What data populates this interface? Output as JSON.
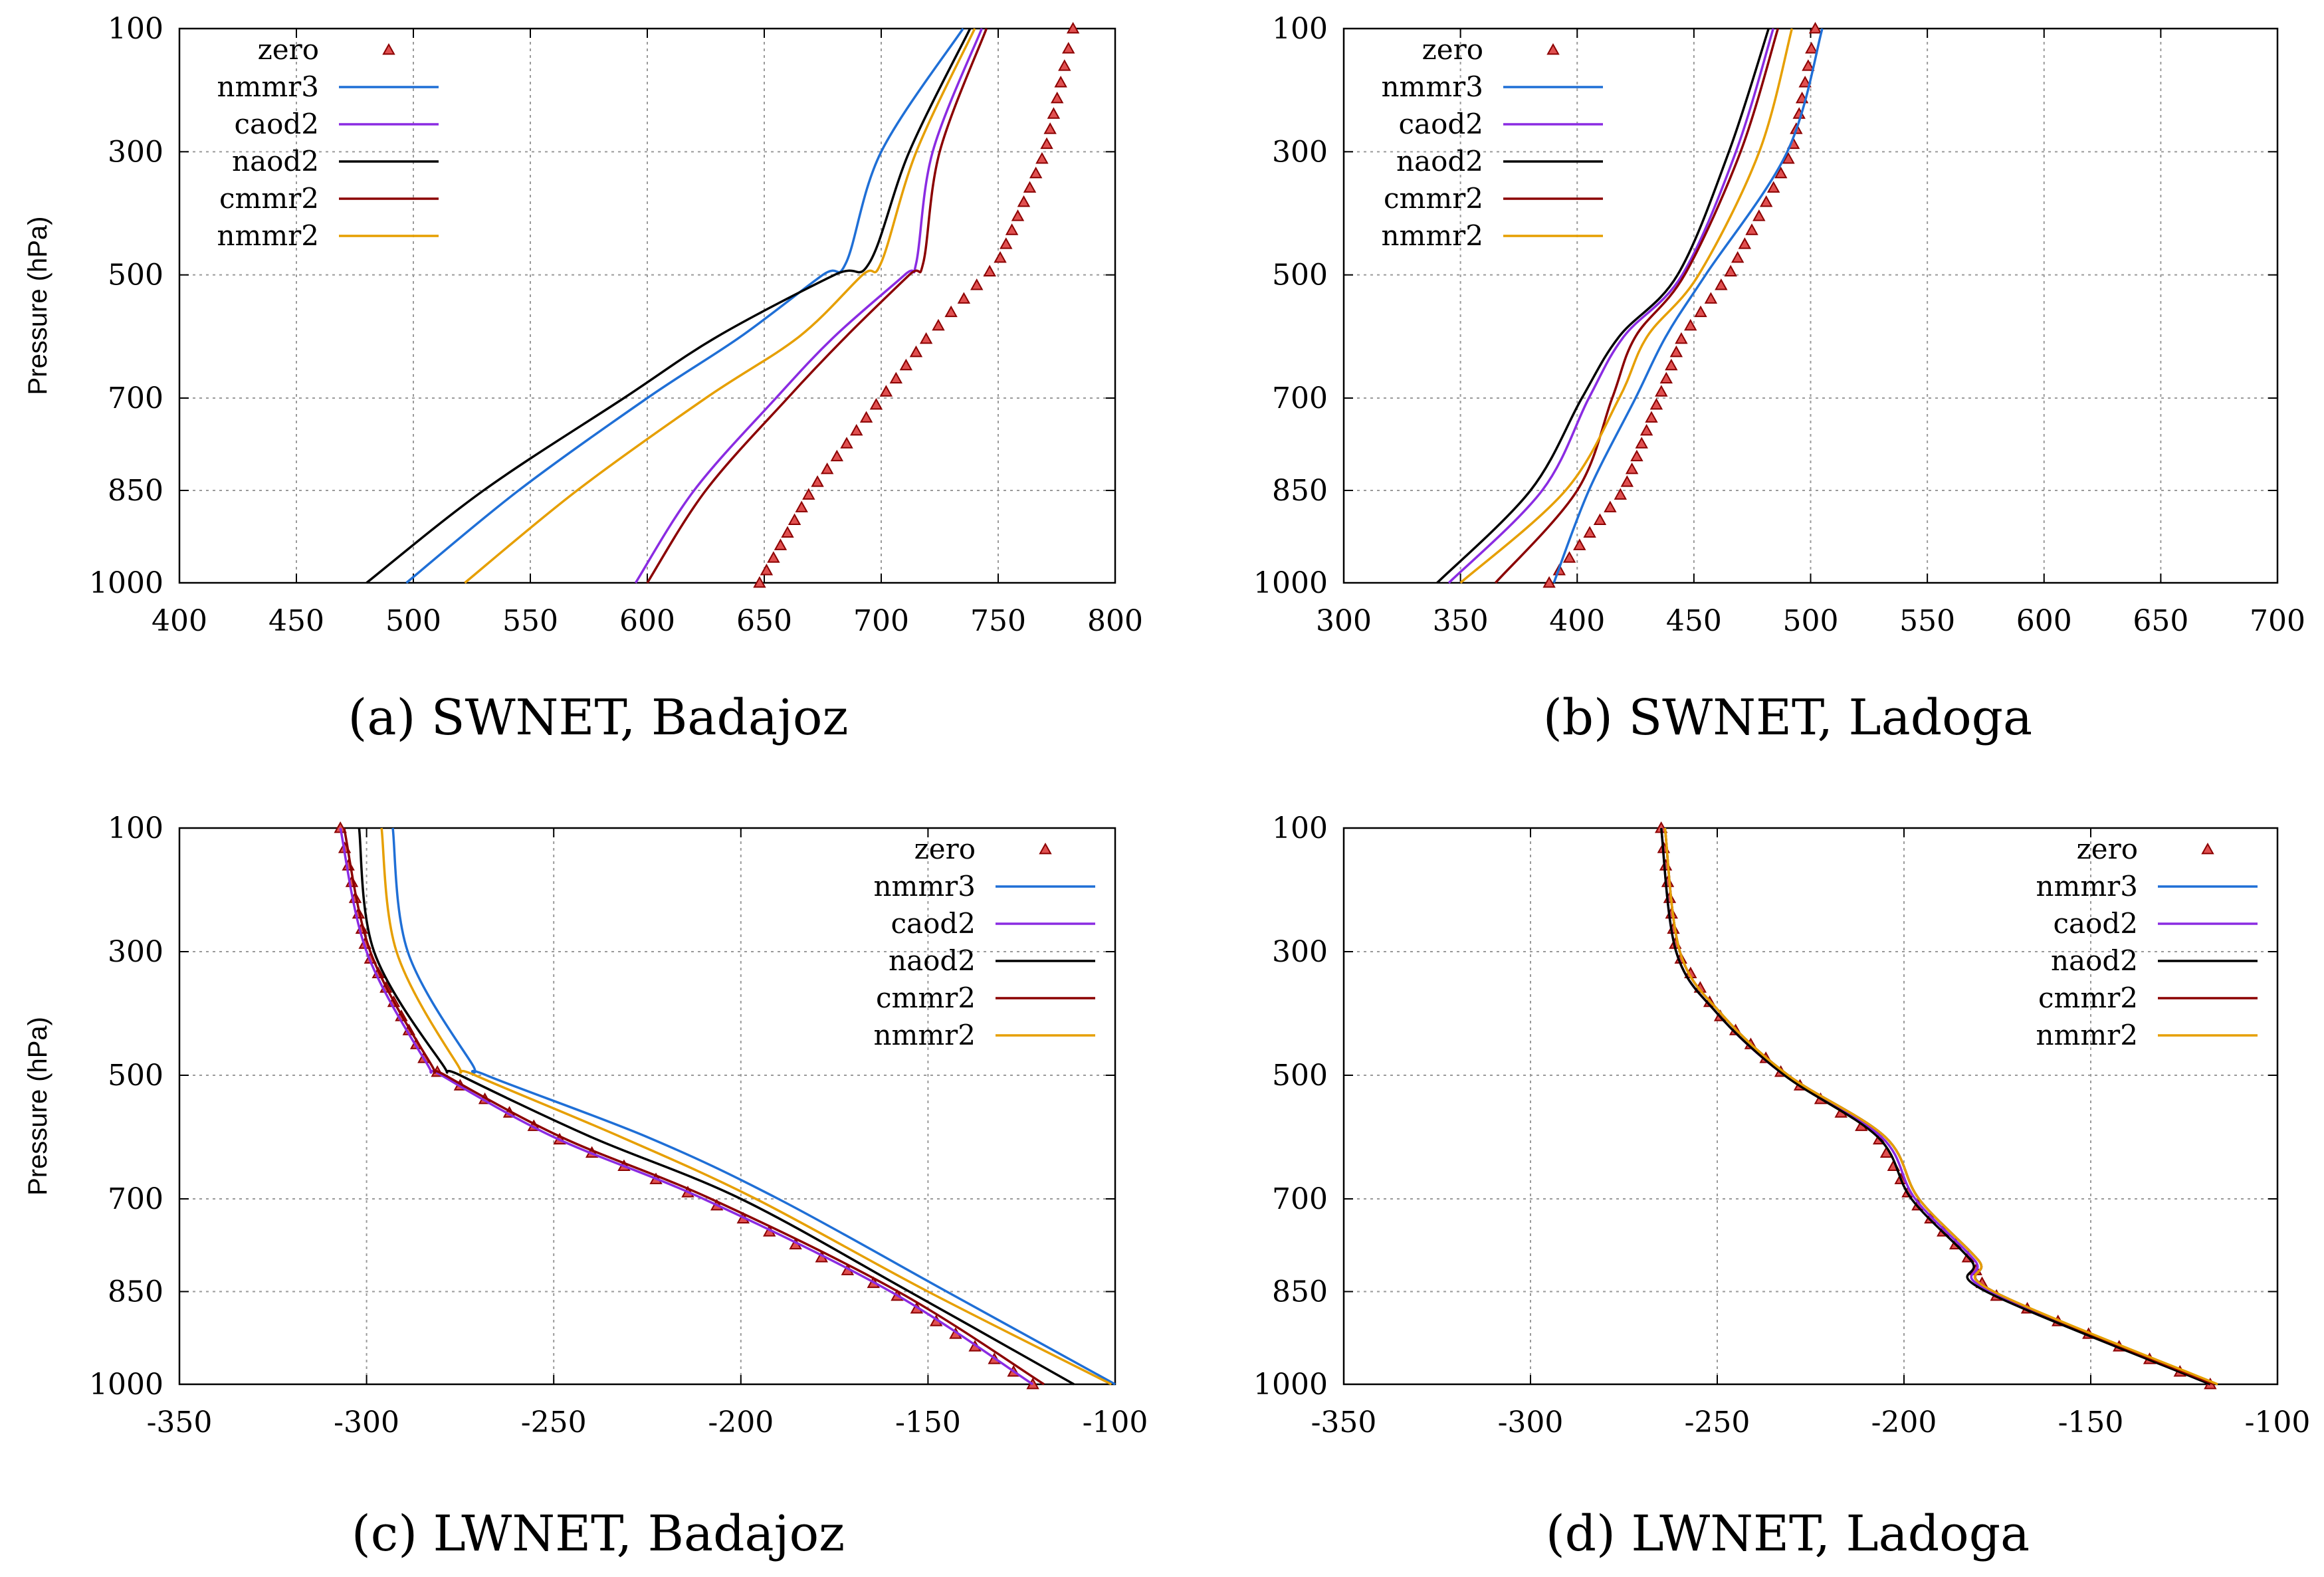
{
  "y_ticks": [
    "100",
    "300",
    "500",
    "700",
    "850",
    "1000"
  ],
  "y_tick_values": [
    100,
    300,
    500,
    700,
    850,
    1000
  ],
  "ylabel": "Pressure (hPa)",
  "series_meta": [
    {
      "key": "zero",
      "name": "zero",
      "color": "#8b0000",
      "fill": "#e05050",
      "marker": "triangle"
    },
    {
      "key": "nmmr3",
      "name": "nmmr3",
      "color": "#1f6fd6"
    },
    {
      "key": "caod2",
      "name": "caod2",
      "color": "#8a2be2"
    },
    {
      "key": "naod2",
      "name": "naod2",
      "color": "#000000"
    },
    {
      "key": "cmmr2",
      "name": "cmmr2",
      "color": "#8b0000"
    },
    {
      "key": "nmmr2",
      "name": "nmmr2",
      "color": "#e69f00"
    }
  ],
  "chart_data": [
    {
      "type": "line",
      "caption": "(a) SWNET, Badajoz",
      "xlim": [
        400,
        800
      ],
      "x_ticks": [
        "400",
        "450",
        "500",
        "550",
        "600",
        "650",
        "700",
        "750",
        "800"
      ],
      "legend_position": "top-left",
      "pressure": [
        100,
        300,
        480,
        500,
        600,
        700,
        850,
        1000
      ],
      "series": [
        {
          "name": "zero",
          "values": [
            782,
            770,
            750,
            745,
            720,
            700,
            670,
            648
          ]
        },
        {
          "name": "nmmr3",
          "values": [
            735,
            700,
            685,
            675,
            640,
            600,
            545,
            497
          ]
        },
        {
          "name": "caod2",
          "values": [
            743,
            722,
            715,
            710,
            680,
            655,
            620,
            595
          ]
        },
        {
          "name": "naod2",
          "values": [
            738,
            712,
            695,
            680,
            630,
            590,
            530,
            480
          ]
        },
        {
          "name": "cmmr2",
          "values": [
            745,
            725,
            718,
            712,
            685,
            660,
            625,
            600
          ]
        },
        {
          "name": "nmmr2",
          "values": [
            740,
            715,
            700,
            692,
            665,
            625,
            570,
            522
          ]
        }
      ]
    },
    {
      "type": "line",
      "caption": "(b) SWNET, Ladoga",
      "xlim": [
        300,
        700
      ],
      "x_ticks": [
        "300",
        "350",
        "400",
        "450",
        "500",
        "550",
        "600",
        "650",
        "700"
      ],
      "legend_position": "top-left",
      "pressure": [
        100,
        300,
        500,
        600,
        700,
        850,
        1000
      ],
      "series": [
        {
          "name": "zero",
          "values": [
            502,
            492,
            465,
            445,
            435,
            420,
            388
          ]
        },
        {
          "name": "nmmr3",
          "values": [
            505,
            490,
            455,
            438,
            425,
            405,
            390
          ]
        },
        {
          "name": "caod2",
          "values": [
            484,
            468,
            445,
            420,
            405,
            385,
            345
          ]
        },
        {
          "name": "naod2",
          "values": [
            482,
            465,
            443,
            418,
            402,
            380,
            340
          ]
        },
        {
          "name": "cmmr2",
          "values": [
            486,
            470,
            446,
            425,
            415,
            400,
            365
          ]
        },
        {
          "name": "nmmr2",
          "values": [
            492,
            478,
            452,
            430,
            418,
            395,
            350
          ]
        }
      ]
    },
    {
      "type": "line",
      "caption": "(c) LWNET, Badajoz",
      "xlim": [
        -350,
        -100
      ],
      "x_ticks": [
        "-350",
        "-300",
        "-250",
        "-200",
        "-150",
        "-100"
      ],
      "legend_position": "top-right",
      "pressure": [
        100,
        300,
        480,
        500,
        600,
        700,
        850,
        1000
      ],
      "series": [
        {
          "name": "zero",
          "values": [
            -307,
            -300,
            -284,
            -280,
            -250,
            -210,
            -160,
            -122
          ]
        },
        {
          "name": "nmmr3",
          "values": [
            -293,
            -289,
            -272,
            -268,
            -225,
            -190,
            -145,
            -100
          ]
        },
        {
          "name": "caod2",
          "values": [
            -307,
            -300,
            -284,
            -280,
            -250,
            -210,
            -160,
            -122
          ]
        },
        {
          "name": "naod2",
          "values": [
            -302,
            -298,
            -280,
            -275,
            -240,
            -200,
            -155,
            -111
          ]
        },
        {
          "name": "cmmr2",
          "values": [
            -306,
            -299,
            -283,
            -279,
            -248,
            -208,
            -158,
            -119
          ]
        },
        {
          "name": "nmmr2",
          "values": [
            -296,
            -292,
            -276,
            -271,
            -232,
            -196,
            -150,
            -101
          ]
        }
      ]
    },
    {
      "type": "line",
      "caption": "(d) LWNET, Ladoga",
      "xlim": [
        -350,
        -100
      ],
      "x_ticks": [
        "-350",
        "-300",
        "-250",
        "-200",
        "-150",
        "-100"
      ],
      "legend_position": "top-right",
      "pressure": [
        100,
        300,
        400,
        500,
        600,
        700,
        800,
        850,
        1000
      ],
      "series": [
        {
          "name": "zero",
          "values": [
            -265,
            -261,
            -250,
            -232,
            -207,
            -198,
            -182,
            -178,
            -118
          ]
        },
        {
          "name": "nmmr3",
          "values": [
            -264,
            -260,
            -249,
            -231,
            -205,
            -196,
            -180,
            -176,
            -117
          ]
        },
        {
          "name": "caod2",
          "values": [
            -265,
            -261,
            -250,
            -232,
            -206,
            -197,
            -181,
            -177,
            -118
          ]
        },
        {
          "name": "naod2",
          "values": [
            -265,
            -261,
            -250,
            -232,
            -207,
            -198,
            -182,
            -178,
            -118
          ]
        },
        {
          "name": "cmmr2",
          "values": [
            -264,
            -260,
            -249,
            -231,
            -205,
            -196,
            -180,
            -176,
            -117
          ]
        },
        {
          "name": "nmmr2",
          "values": [
            -264,
            -260,
            -249,
            -231,
            -205,
            -196,
            -180,
            -176,
            -116
          ]
        }
      ]
    }
  ]
}
